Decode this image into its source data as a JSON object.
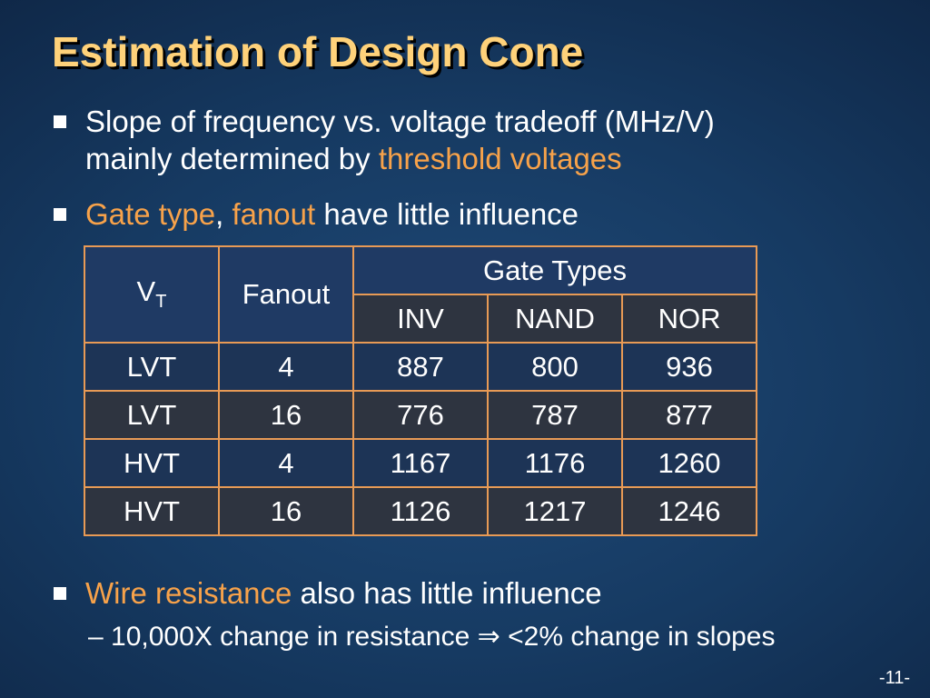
{
  "title": "Estimation of Design Cone",
  "bullets": {
    "b1": {
      "line1": "Slope of frequency vs. voltage tradeoff (MHz/V)",
      "line2_plain": "mainly determined by ",
      "line2_highlight": "threshold voltages"
    },
    "b2": {
      "hl1": "Gate type",
      "sep": ", ",
      "hl2": "fanout",
      "rest": " have little influence"
    },
    "b3": {
      "hl": "Wire resistance",
      "rest": " also has little influence"
    },
    "sub": {
      "text1": "– 10,000X change in resistance ",
      "arrow": "⇒",
      "text2": " <2% change in slopes"
    }
  },
  "table": {
    "vt_label": "V",
    "vt_subscript": "T",
    "fanout_label": "Fanout",
    "gate_types_label": "Gate Types",
    "gate_columns": [
      "INV",
      "NAND",
      "NOR"
    ],
    "rows": [
      {
        "vt": "LVT",
        "fanout": "4",
        "inv": "887",
        "nand": "800",
        "nor": "936"
      },
      {
        "vt": "LVT",
        "fanout": "16",
        "inv": "776",
        "nand": "787",
        "nor": "877"
      },
      {
        "vt": "HVT",
        "fanout": "4",
        "inv": "1167",
        "nand": "1176",
        "nor": "1260"
      },
      {
        "vt": "HVT",
        "fanout": "16",
        "inv": "1126",
        "nand": "1217",
        "nor": "1246"
      }
    ]
  },
  "page_number": "-11-",
  "colors": {
    "title": "#ffd27a",
    "highlight": "#f7a24a",
    "table_border": "#e89a55"
  }
}
